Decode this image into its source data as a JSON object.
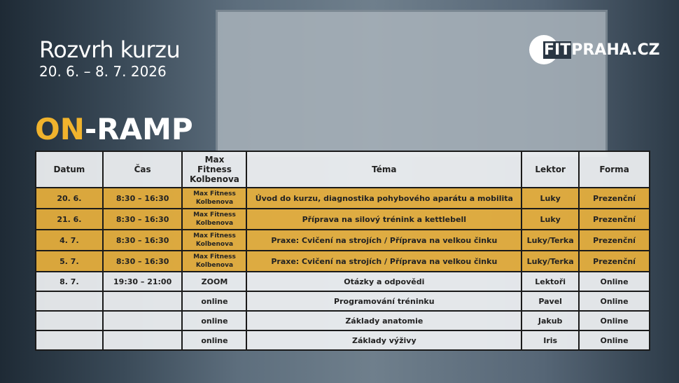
{
  "header": {
    "title": "Rozvrh kurzu",
    "dates": "20. 6. – 8. 7. 2026",
    "course_on": "ON",
    "course_rest": "-RAMP"
  },
  "logo": {
    "fit": "FIT",
    "rest": "PRAHA.CZ"
  },
  "colors": {
    "accent": "#f0b32d",
    "row_highlight": "#e8b03c"
  },
  "table": {
    "headers": [
      "Datum",
      "Čas",
      "Max Fitness Kolbenova",
      "Téma",
      "Lektor",
      "Forma"
    ],
    "rows": [
      {
        "datum": "20. 6.",
        "cas": "8:30 – 16:30",
        "misto": "Max Fitness Kolbenova",
        "tema": "Úvod do kurzu, diagnostika pohybového aparátu a mobilita",
        "lektor": "Luky",
        "forma": "Prezenční"
      },
      {
        "datum": "21. 6.",
        "cas": "8:30 – 16:30",
        "misto": "Max Fitness Kolbenova",
        "tema": "Příprava na silový trénink a kettlebell",
        "lektor": "Luky",
        "forma": "Prezenční"
      },
      {
        "datum": "4. 7.",
        "cas": "8:30 – 16:30",
        "misto": "Max Fitness Kolbenova",
        "tema": "Praxe: Cvičení na strojích / Příprava na velkou činku",
        "lektor": "Luky/Terka",
        "forma": "Prezenční"
      },
      {
        "datum": "5. 7.",
        "cas": "8:30 – 16:30",
        "misto": "Max Fitness Kolbenova",
        "tema": "Praxe: Cvičení na strojích / Příprava na velkou činku",
        "lektor": "Luky/Terka",
        "forma": "Prezenční"
      },
      {
        "datum": "8. 7.",
        "cas": "19:30 – 21:00",
        "misto": "ZOOM",
        "tema": "Otázky a odpovědi",
        "lektor": "Lektoři",
        "forma": "Online"
      },
      {
        "datum": "",
        "cas": "",
        "misto": "online",
        "tema": "Programování tréninku",
        "lektor": "Pavel",
        "forma": "Online"
      },
      {
        "datum": "",
        "cas": "",
        "misto": "online",
        "tema": "Základy anatomie",
        "lektor": "Jakub",
        "forma": "Online"
      },
      {
        "datum": "",
        "cas": "",
        "misto": "online",
        "tema": "Základy výživy",
        "lektor": "Iris",
        "forma": "Online"
      }
    ]
  }
}
